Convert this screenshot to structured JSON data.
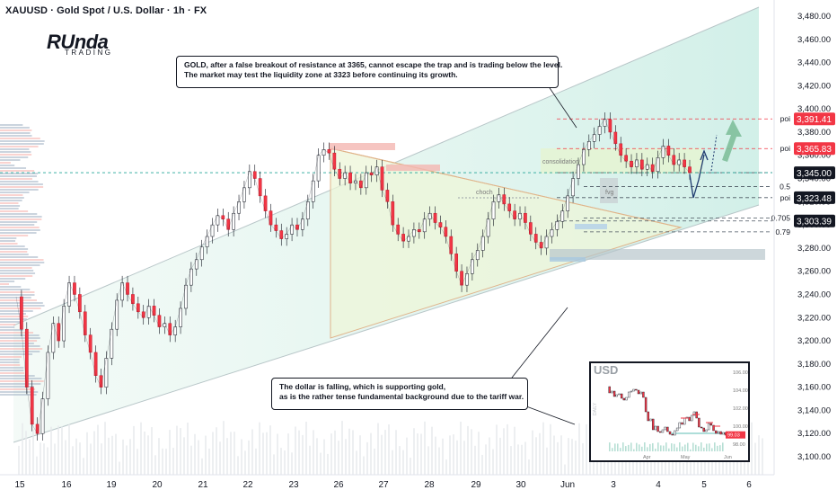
{
  "title": "XAUUSD · Gold Spot / U.S. Dollar · 1h · FX",
  "logo": {
    "main": "RUnda",
    "sub": "TRADING"
  },
  "callouts": {
    "top_line1": "GOLD, after a false breakout of resistance at 3365, cannot escape the trap and is trading below the level.",
    "top_line2": "The market may test the liquidity zone at 3323 before continuing its growth.",
    "bottom_line1": "The dollar is falling, which is supporting gold,",
    "bottom_line2": "as is the rather tense fundamental background due to the tariff war."
  },
  "zones": {
    "consolidation": "consolidation",
    "fvg": "fvg",
    "choch": "choch"
  },
  "levels": [
    {
      "label": "poi",
      "price": 3391.41,
      "tag": "3,391.41",
      "color": "#f23645"
    },
    {
      "label": "poi",
      "price": 3365.83,
      "tag": "3,365.83",
      "color": "#f23645"
    },
    {
      "label": "",
      "price": 3345.0,
      "tag": "3,345.00",
      "color": "#131722"
    },
    {
      "label": "0.5",
      "price": 3333.0,
      "tag": "",
      "color": ""
    },
    {
      "label": "poi",
      "price": 3323.48,
      "tag": "3,323.48",
      "color": "#131722"
    },
    {
      "label": "0.705",
      "price": 3306.0,
      "tag": "",
      "color": ""
    },
    {
      "label": "",
      "price": 3303.39,
      "tag": "3,303.39",
      "color": "#131722"
    },
    {
      "label": "0.79",
      "price": 3294.0,
      "tag": "",
      "color": ""
    }
  ],
  "inset": {
    "title": "USD",
    "side_label": "DAILY",
    "y_ticks": [
      "106.00",
      "104.00",
      "102.00",
      "100.00",
      "98.00"
    ],
    "x_ticks": [
      "Apr",
      "May",
      "Jun"
    ],
    "last_value": "99.03",
    "series": [
      104.4,
      103.7,
      103.9,
      103.3,
      103.5,
      103.6,
      103.1,
      102.9,
      103.2,
      103.8,
      103.9,
      104.1,
      104.0,
      103.6,
      103.8,
      103.2,
      101.6,
      100.6,
      100.8,
      99.6,
      100.0,
      99.4,
      99.3,
      99.6,
      99.9,
      99.4,
      99.1,
      99.0,
      99.5,
      99.8,
      100.4,
      100.2,
      100.9,
      101.0,
      100.6,
      101.2,
      101.6,
      100.9,
      99.9,
      99.8,
      99.4,
      99.6,
      100.3,
      100.1,
      99.5,
      99.2,
      99.4,
      99.1,
      99.3,
      99.0
    ]
  },
  "chart_data": {
    "type": "line",
    "title": "XAUUSD · Gold Spot / U.S. Dollar · 1h · FX",
    "xlabel": "",
    "ylabel": "",
    "ylim": [
      3094,
      3495
    ],
    "y_ticks": [
      3480,
      3460,
      3440,
      3420,
      3400,
      3380,
      3360,
      3340,
      3320,
      3300,
      3280,
      3260,
      3240,
      3220,
      3200,
      3180,
      3160,
      3140,
      3120,
      3100
    ],
    "y_tick_labels": [
      "3,480.00",
      "3,460.00",
      "3,440.00",
      "3,420.00",
      "3,400.00",
      "3,380.00",
      "3,360.00",
      "3,340.00",
      "3,320.00",
      "3,300.00",
      "3,280.00",
      "3,260.00",
      "3,240.00",
      "3,220.00",
      "3,200.00",
      "3,180.00",
      "3,160.00",
      "3,140.00",
      "3,120.00",
      "3,100.00"
    ],
    "x_tick_labels": [
      "15",
      "16",
      "19",
      "20",
      "21",
      "22",
      "23",
      "26",
      "27",
      "28",
      "29",
      "30",
      "Jun",
      "3",
      "4",
      "5",
      "6"
    ],
    "series": [
      {
        "values": [
          3238,
          3210,
          3160,
          3128,
          3120,
          3150,
          3190,
          3215,
          3200,
          3230,
          3250,
          3240,
          3225,
          3205,
          3190,
          3170,
          3160,
          3185,
          3210,
          3235,
          3250,
          3240,
          3232,
          3225,
          3220,
          3230,
          3222,
          3212,
          3215,
          3205,
          3212,
          3228,
          3248,
          3262,
          3270,
          3281,
          3290,
          3300,
          3308,
          3305,
          3296,
          3310,
          3320,
          3332,
          3346,
          3340,
          3325,
          3312,
          3300,
          3295,
          3288,
          3292,
          3300,
          3296,
          3305,
          3320,
          3338,
          3360,
          3365,
          3362,
          3348,
          3340,
          3345,
          3336,
          3338,
          3332,
          3345,
          3343,
          3350,
          3330,
          3320,
          3300,
          3292,
          3286,
          3290,
          3296,
          3294,
          3305,
          3310,
          3302,
          3298,
          3290,
          3275,
          3260,
          3248,
          3258,
          3270,
          3278,
          3290,
          3305,
          3320,
          3326,
          3318,
          3312,
          3305,
          3310,
          3302,
          3292,
          3285,
          3280,
          3290,
          3296,
          3303,
          3312,
          3325,
          3340,
          3352,
          3365,
          3372,
          3378,
          3385,
          3391,
          3380,
          3370,
          3360,
          3355,
          3350,
          3356,
          3348,
          3352,
          3346,
          3358,
          3368,
          3360,
          3352,
          3356,
          3350,
          3345
        ]
      }
    ]
  }
}
